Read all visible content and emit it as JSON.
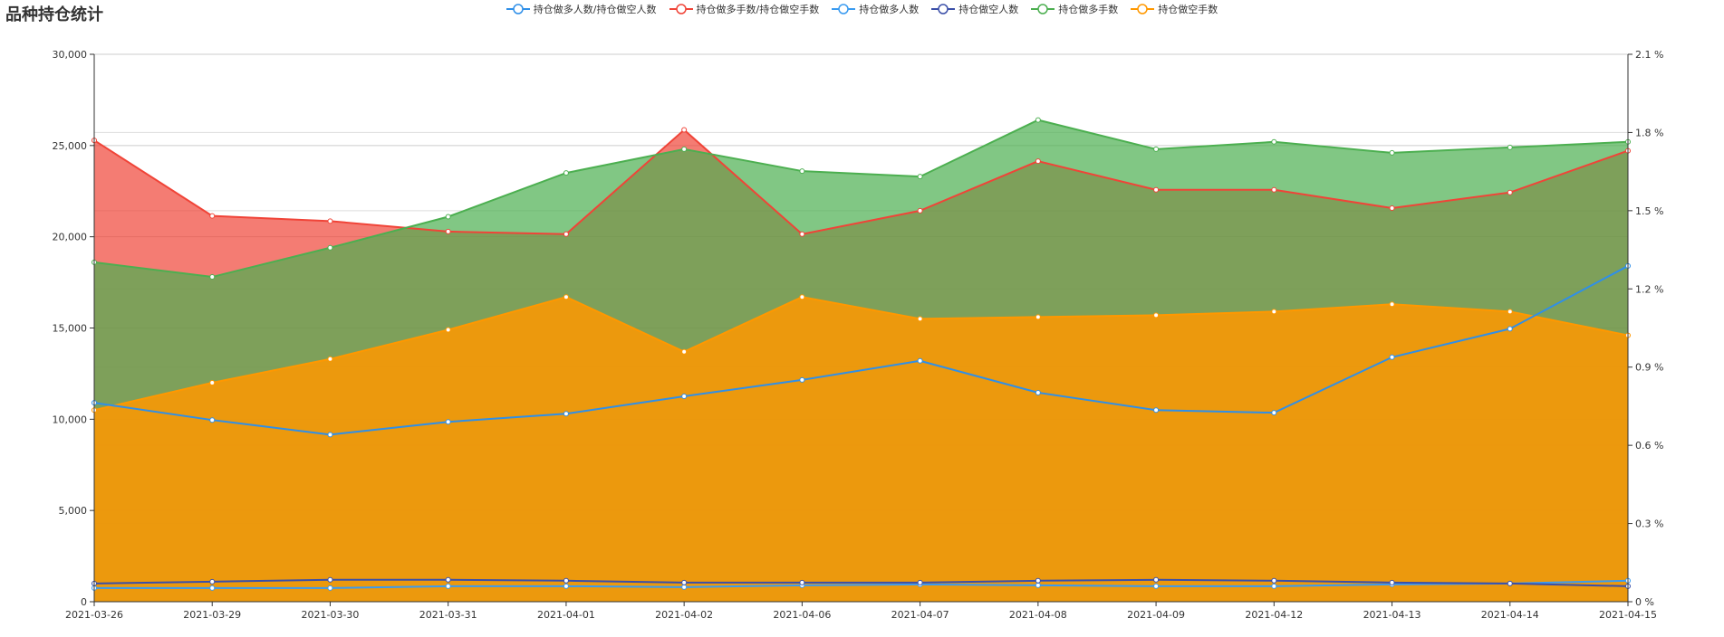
{
  "title": "品种持仓统计",
  "chart_data": {
    "type": "area",
    "title": "品种持仓统计",
    "categories": [
      "2021-03-26",
      "2021-03-29",
      "2021-03-30",
      "2021-03-31",
      "2021-04-01",
      "2021-04-02",
      "2021-04-06",
      "2021-04-07",
      "2021-04-08",
      "2021-04-09",
      "2021-04-12",
      "2021-04-13",
      "2021-04-14",
      "2021-04-15"
    ],
    "left_axis": {
      "ylim": [
        0,
        30000
      ],
      "ticks": [
        "0",
        "5,000",
        "10,000",
        "15,000",
        "20,000",
        "25,000",
        "30,000"
      ]
    },
    "right_axis": {
      "ylim": [
        0,
        2.1
      ],
      "ticks": [
        "0 %",
        "0.3 %",
        "0.6 %",
        "0.9 %",
        "1.2 %",
        "1.5 %",
        "1.8 %",
        "2.1 %"
      ]
    },
    "legend_position": "top-center",
    "series": [
      {
        "name": "持仓做多人数/持仓做空人数",
        "axis": "right",
        "color": "#2f8fe8",
        "fill": false,
        "values": [
          0.763,
          0.697,
          0.641,
          0.69,
          0.721,
          0.788,
          0.851,
          0.924,
          0.802,
          0.735,
          0.725,
          0.938,
          1.047,
          1.288
        ]
      },
      {
        "name": "持仓做多手数/持仓做空手数",
        "axis": "right",
        "color": "#f04438",
        "fill": true,
        "values": [
          1.77,
          1.48,
          1.46,
          1.42,
          1.41,
          1.81,
          1.41,
          1.5,
          1.69,
          1.58,
          1.58,
          1.51,
          1.57,
          1.73
        ]
      },
      {
        "name": "持仓做多人数",
        "axis": "left",
        "color": "#3a9bf0",
        "fill": false,
        "values": [
          750,
          750,
          750,
          850,
          850,
          800,
          900,
          950,
          900,
          850,
          850,
          950,
          1000,
          1150
        ]
      },
      {
        "name": "持仓做空人数",
        "axis": "left",
        "color": "#3b4fa8",
        "fill": false,
        "values": [
          1000,
          1100,
          1200,
          1200,
          1150,
          1050,
          1050,
          1050,
          1150,
          1200,
          1150,
          1050,
          1000,
          850
        ]
      },
      {
        "name": "持仓做多手数",
        "axis": "left",
        "color": "#4caf50",
        "fill": true,
        "values": [
          18600,
          17800,
          19400,
          21100,
          23500,
          24800,
          23600,
          23300,
          26400,
          24800,
          25200,
          24600,
          24900,
          25200
        ]
      },
      {
        "name": "持仓做空手数",
        "axis": "left",
        "color": "#ff9800",
        "fill": true,
        "values": [
          10500,
          12000,
          13300,
          14900,
          16700,
          13700,
          16700,
          15500,
          15600,
          15700,
          15900,
          16300,
          15900,
          14600
        ]
      }
    ]
  }
}
